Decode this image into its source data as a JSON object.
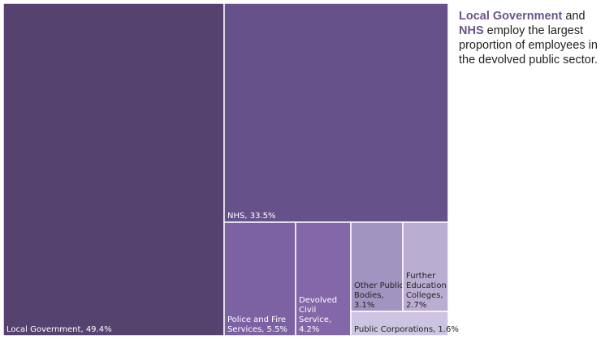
{
  "chart_data": {
    "type": "treemap",
    "items": [
      {
        "name": "Local Government",
        "label": "Local Government, 49.4%",
        "value": 49.4,
        "color": "#56426f",
        "label_lines": [
          "Local Government, 49.4%"
        ]
      },
      {
        "name": "NHS",
        "label": "NHS, 33.5%",
        "value": 33.5,
        "color": "#67518b",
        "label_lines": [
          "NHS, 33.5%"
        ]
      },
      {
        "name": "Police and Fire Services",
        "label": "Police and Fire Services, 5.5%",
        "value": 5.5,
        "color": "#7c62a3",
        "label_lines": [
          "Police and Fire",
          "Services, 5.5%"
        ]
      },
      {
        "name": "Devolved Civil Service",
        "label": "Devolved Civil Service, 4.2%",
        "value": 4.2,
        "color": "#8467a8",
        "label_lines": [
          "Devolved",
          "Civil",
          "Service,",
          "4.2%"
        ]
      },
      {
        "name": "Other Public Bodies",
        "label": "Other Public Bodies, 3.1%",
        "value": 3.1,
        "color": "#a194c0",
        "label_lines": [
          "Other Public",
          "Bodies,",
          "3.1%"
        ]
      },
      {
        "name": "Further Education Colleges",
        "label": "Further Education Colleges, 2.7%",
        "value": 2.7,
        "color": "#b9aed2",
        "label_lines": [
          "Further",
          "Education",
          "Colleges,",
          "2.7%"
        ]
      },
      {
        "name": "Public Corporations",
        "label": "Public Corporations, 1.6%",
        "value": 1.6,
        "color": "#ccc4e0",
        "label_lines": [
          "Public Corporations, 1.6%"
        ]
      }
    ]
  },
  "caption": {
    "highlight_1": "Local Government",
    "text_1": " and ",
    "highlight_2": "NHS",
    "text_2": " employ the largest proportion of employees in the devolved public sector."
  }
}
